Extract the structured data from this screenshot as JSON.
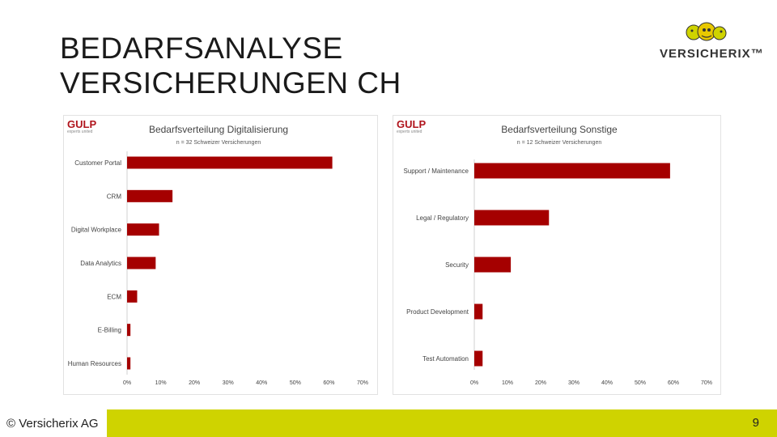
{
  "slide": {
    "title_line1": "BEDARFSANALYSE",
    "title_line2": "VERSICHERUNGEN CH",
    "logo_text": "VERSICHERIX™",
    "footer_copyright": "© Versicherix AG",
    "page_number": "9",
    "accent_color": "#cfd300"
  },
  "gulp_logo": {
    "word": "GULP",
    "tagline": "experts united"
  },
  "chart_data": [
    {
      "type": "bar",
      "orientation": "horizontal",
      "title": "Bedarfsverteilung Digitalisierung",
      "subtitle": "n = 32 Schweizer Versicherungen",
      "categories": [
        "Customer Portal",
        "CRM",
        "Digital Workplace",
        "Data Analytics",
        "ECM",
        "E-Billing",
        "Human Resources"
      ],
      "values": [
        61,
        13.5,
        9.5,
        8.5,
        3,
        1,
        1
      ],
      "xlim": [
        0,
        70
      ],
      "xticks": [
        "0%",
        "10%",
        "20%",
        "30%",
        "40%",
        "50%",
        "60%",
        "70%"
      ],
      "bar_color": "#a50000",
      "grid": false
    },
    {
      "type": "bar",
      "orientation": "horizontal",
      "title": "Bedarfsverteilung Sonstige",
      "subtitle": "n = 12 Schweizer Versicherungen",
      "categories": [
        "Support / Maintenance",
        "Legal / Regulatory",
        "Security",
        "Product Development",
        "Test Automation"
      ],
      "values": [
        59,
        22.5,
        11,
        2.5,
        2.5
      ],
      "xlim": [
        0,
        70
      ],
      "xticks": [
        "0%",
        "10%",
        "20%",
        "30%",
        "40%",
        "50%",
        "60%",
        "70%"
      ],
      "bar_color": "#a50000",
      "grid": false
    }
  ]
}
